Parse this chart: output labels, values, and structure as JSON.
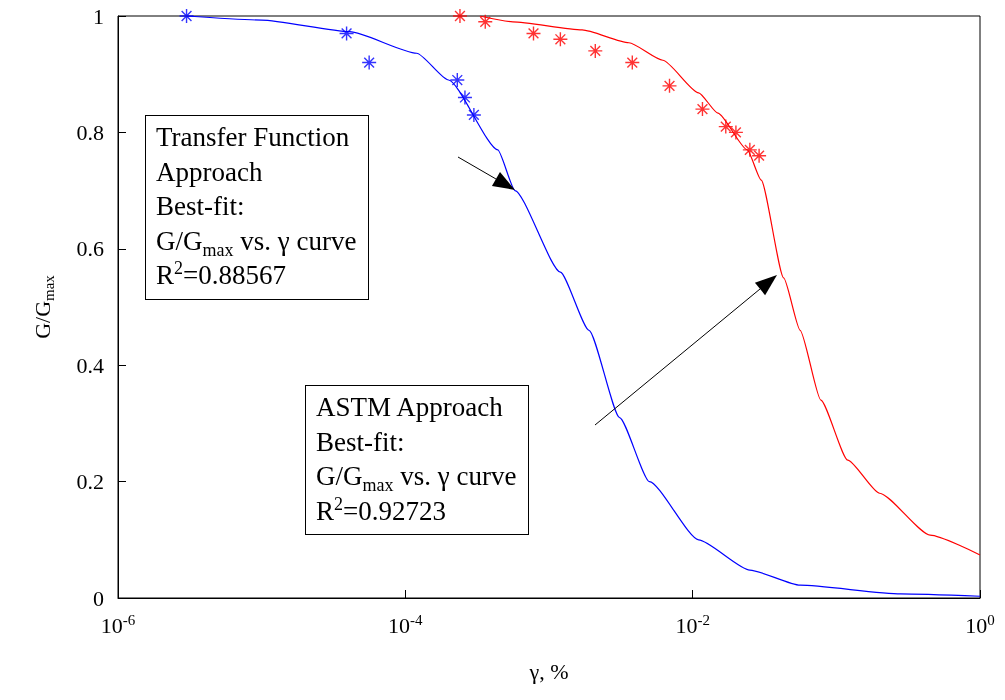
{
  "chart_data": {
    "type": "line",
    "xlabel": "γ, %",
    "ylabel": "G/G$_{max}$",
    "log": "x",
    "xlim": [
      1e-06,
      1
    ],
    "xticks": [
      {
        "value": 1e-06,
        "label": "10$^{-6}$"
      },
      {
        "value": 0.0001,
        "label": "10$^{-4}$"
      },
      {
        "value": 0.01,
        "label": "10$^{-2}$"
      },
      {
        "value": 1,
        "label": "10$^{0}$"
      }
    ],
    "ylim": [
      0,
      1
    ],
    "yticks": [
      0,
      0.2,
      0.4,
      0.6,
      0.8,
      1
    ],
    "grid": false,
    "series": [
      {
        "marker": "none",
        "color": "#0000ff",
        "x": [
          3e-06,
          1e-05,
          4.1e-05,
          0.00012,
          0.0002,
          0.00044,
          0.00058,
          0.0012,
          0.0019,
          0.0031,
          0.005,
          0.011,
          0.025,
          0.056,
          0.28,
          1
        ],
        "values": [
          1,
          0.993,
          0.973,
          0.936,
          0.89,
          0.77,
          0.7,
          0.56,
          0.46,
          0.31,
          0.2,
          0.1,
          0.048,
          0.022,
          0.007,
          0.003
        ]
      },
      {
        "type": "scatter",
        "marker": "cross",
        "color": "#0000ff",
        "x": [
          3e-06,
          3.9e-05,
          5.6e-05,
          0.00023,
          0.00026,
          0.0003
        ],
        "values": [
          1,
          0.97,
          0.92,
          0.89,
          0.86,
          0.83
        ]
      },
      {
        "marker": "none",
        "color": "#ff0000",
        "x": [
          0.00033,
          0.00056,
          0.0017,
          0.0036,
          0.0062,
          0.011,
          0.015,
          0.024,
          0.03,
          0.043,
          0.056,
          0.078,
          0.12,
          0.2,
          0.45,
          1
        ],
        "values": [
          1,
          0.99,
          0.976,
          0.954,
          0.924,
          0.868,
          0.833,
          0.77,
          0.718,
          0.55,
          0.46,
          0.34,
          0.237,
          0.18,
          0.108,
          0.074
        ]
      },
      {
        "type": "scatter",
        "marker": "cross",
        "color": "#ff0000",
        "x": [
          0.00024,
          0.00036,
          0.00078,
          0.0012,
          0.0021,
          0.0038,
          0.0069,
          0.0117,
          0.017,
          0.02,
          0.025,
          0.029
        ],
        "values": [
          1,
          0.99,
          0.97,
          0.96,
          0.94,
          0.92,
          0.88,
          0.84,
          0.81,
          0.8,
          0.77,
          0.76
        ]
      }
    ],
    "annotations": [
      "Transfer Function\nApproach\nBest-fit:\nG/G$_{max}$ vs. γ curve\nR$^{2}$=0.88567",
      "ASTM Approach\nBest-fit:\nG/G$_{max}$ vs. γ curve\nR$^{2}$=0.92723"
    ]
  }
}
